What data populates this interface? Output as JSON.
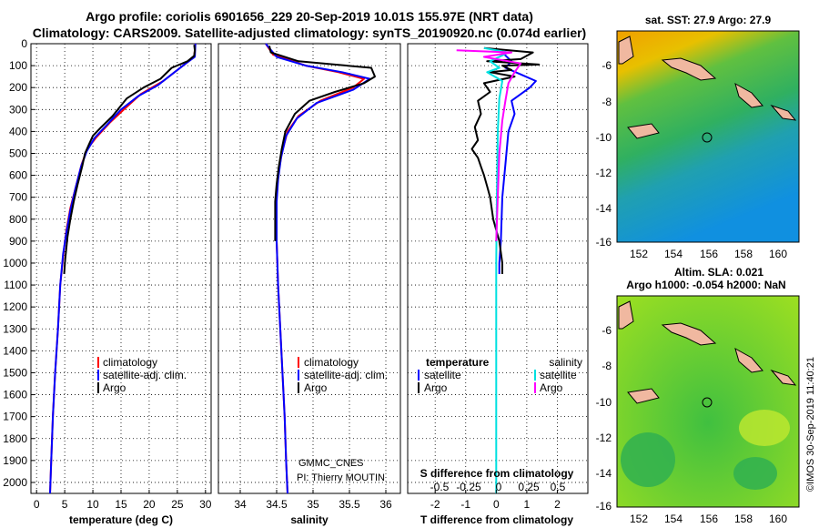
{
  "header": {
    "line1": "Argo profile: coriolis 6901656_229 20-Sep-2019 10.01S 155.97E (NRT data)",
    "line2": "Climatology: CARS2009. Satellite-adjusted climatology: synTS_20190920.nc (0.074d earlier)"
  },
  "colors": {
    "climatology": "#ff0000",
    "satellite": "#0000ff",
    "argo": "#000000",
    "salinity_satellite": "#00e0e0",
    "salinity_argo": "#ff00ff"
  },
  "chart_data": [
    {
      "id": "temperature",
      "type": "line",
      "xlabel": "temperature (deg C)",
      "xlim": [
        -1,
        31
      ],
      "xticks": [
        0,
        5,
        10,
        15,
        20,
        25,
        30
      ],
      "ylim": [
        2050,
        0
      ],
      "yticks": [
        0,
        100,
        200,
        300,
        400,
        500,
        600,
        700,
        800,
        900,
        1000,
        1100,
        1200,
        1300,
        1400,
        1500,
        1600,
        1700,
        1800,
        1900,
        2000
      ],
      "legend": [
        "climatology",
        "satellite-adj. clim.",
        "Argo"
      ],
      "series": [
        {
          "name": "climatology",
          "color": "#ff0000",
          "points": [
            [
              28.2,
              0
            ],
            [
              28.0,
              60
            ],
            [
              27.0,
              80
            ],
            [
              25.5,
              110
            ],
            [
              22.5,
              170
            ],
            [
              18.5,
              230
            ],
            [
              15.5,
              300
            ],
            [
              13.0,
              360
            ],
            [
              10.5,
              430
            ],
            [
              9.0,
              480
            ],
            [
              8.0,
              550
            ],
            [
              7.0,
              650
            ],
            [
              6.0,
              750
            ],
            [
              5.3,
              850
            ],
            [
              4.8,
              950
            ],
            [
              4.2,
              1100
            ],
            [
              3.8,
              1300
            ],
            [
              3.3,
              1500
            ],
            [
              2.9,
              1700
            ],
            [
              2.6,
              1900
            ],
            [
              2.4,
              2050
            ]
          ]
        },
        {
          "name": "satellite-adj. clim.",
          "color": "#0000ff",
          "points": [
            [
              28.2,
              0
            ],
            [
              28.1,
              60
            ],
            [
              26.5,
              90
            ],
            [
              24.5,
              130
            ],
            [
              21.5,
              190
            ],
            [
              18.0,
              240
            ],
            [
              15.0,
              300
            ],
            [
              12.5,
              370
            ],
            [
              10.3,
              430
            ],
            [
              8.9,
              490
            ],
            [
              7.9,
              560
            ],
            [
              6.9,
              660
            ],
            [
              6.0,
              760
            ],
            [
              5.3,
              860
            ],
            [
              4.7,
              960
            ],
            [
              4.2,
              1100
            ],
            [
              3.8,
              1300
            ],
            [
              3.3,
              1500
            ],
            [
              2.9,
              1700
            ],
            [
              2.6,
              1900
            ],
            [
              2.4,
              2050
            ]
          ]
        },
        {
          "name": "Argo",
          "color": "#000000",
          "points": [
            [
              28.0,
              5
            ],
            [
              28.1,
              30
            ],
            [
              28.0,
              55
            ],
            [
              26.8,
              80
            ],
            [
              24.0,
              110
            ],
            [
              22.0,
              160
            ],
            [
              19.0,
              200
            ],
            [
              16.0,
              250
            ],
            [
              13.5,
              330
            ],
            [
              11.5,
              380
            ],
            [
              10.0,
              420
            ],
            [
              9.3,
              460
            ],
            [
              8.6,
              500
            ],
            [
              8.1,
              560
            ],
            [
              7.3,
              640
            ],
            [
              6.6,
              720
            ],
            [
              6.0,
              800
            ],
            [
              5.5,
              880
            ],
            [
              5.1,
              980
            ],
            [
              4.9,
              1050
            ]
          ]
        }
      ]
    },
    {
      "id": "salinity",
      "type": "line",
      "xlabel": "salinity",
      "xlim": [
        33.7,
        36.2
      ],
      "xticks": [
        34,
        34.5,
        35,
        35.5,
        36
      ],
      "ylim": [
        2050,
        0
      ],
      "legend": [
        "climatology",
        "satellite-adj. clim.",
        "Argo"
      ],
      "credits": [
        "GMMC_CNES",
        "PI: Thierry MOUTIN"
      ],
      "series": [
        {
          "name": "climatology",
          "color": "#ff0000",
          "points": [
            [
              34.35,
              0
            ],
            [
              34.45,
              50
            ],
            [
              34.9,
              100
            ],
            [
              35.35,
              130
            ],
            [
              35.7,
              160
            ],
            [
              35.55,
              200
            ],
            [
              35.1,
              260
            ],
            [
              34.8,
              330
            ],
            [
              34.65,
              400
            ],
            [
              34.57,
              500
            ],
            [
              34.52,
              600
            ],
            [
              34.5,
              700
            ],
            [
              34.5,
              900
            ],
            [
              34.52,
              1100
            ],
            [
              34.55,
              1300
            ],
            [
              34.58,
              1500
            ],
            [
              34.61,
              1700
            ],
            [
              34.63,
              1900
            ],
            [
              34.65,
              2050
            ]
          ]
        },
        {
          "name": "satellite-adj. clim.",
          "color": "#0000ff",
          "points": [
            [
              34.35,
              0
            ],
            [
              34.5,
              60
            ],
            [
              34.9,
              100
            ],
            [
              35.4,
              130
            ],
            [
              35.78,
              160
            ],
            [
              35.55,
              210
            ],
            [
              35.05,
              270
            ],
            [
              34.78,
              340
            ],
            [
              34.63,
              420
            ],
            [
              34.56,
              520
            ],
            [
              34.52,
              620
            ],
            [
              34.5,
              720
            ],
            [
              34.5,
              900
            ],
            [
              34.52,
              1100
            ],
            [
              34.55,
              1300
            ],
            [
              34.58,
              1500
            ],
            [
              34.61,
              1700
            ],
            [
              34.63,
              1900
            ],
            [
              34.65,
              2050
            ]
          ]
        },
        {
          "name": "Argo",
          "color": "#000000",
          "points": [
            [
              34.4,
              10
            ],
            [
              34.42,
              40
            ],
            [
              34.8,
              80
            ],
            [
              35.3,
              95
            ],
            [
              35.8,
              110
            ],
            [
              35.85,
              150
            ],
            [
              35.7,
              180
            ],
            [
              35.3,
              220
            ],
            [
              34.95,
              260
            ],
            [
              34.75,
              320
            ],
            [
              34.62,
              400
            ],
            [
              34.57,
              480
            ],
            [
              34.53,
              560
            ],
            [
              34.5,
              640
            ],
            [
              34.48,
              720
            ],
            [
              34.48,
              820
            ],
            [
              34.48,
              900
            ]
          ]
        }
      ]
    },
    {
      "id": "difference",
      "type": "line",
      "xlabel": "T difference from climatology",
      "xlabel_top": "S difference from climatology",
      "xlim": [
        -2.9,
        3.0
      ],
      "xticks": [
        -2,
        -1,
        0,
        1,
        2
      ],
      "top_ticks": [
        "-0.5",
        "-0.25",
        "0",
        "0.25",
        "0.5"
      ],
      "ylim": [
        2050,
        0
      ],
      "legend_left_title": "temperature",
      "legend_right_title": "salinity",
      "legend_left": [
        "satellite",
        "Argo"
      ],
      "legend_right": [
        "satellite",
        "Argo"
      ],
      "series": [
        {
          "name": "T satellite",
          "color": "#0000ff",
          "points": [
            [
              0.2,
              40
            ],
            [
              0.5,
              80
            ],
            [
              0.3,
              110
            ],
            [
              0.8,
              140
            ],
            [
              1.3,
              170
            ],
            [
              1.1,
              200
            ],
            [
              0.5,
              260
            ],
            [
              0.6,
              320
            ],
            [
              0.4,
              400
            ],
            [
              0.3,
              550
            ],
            [
              0.2,
              700
            ],
            [
              0.15,
              900
            ],
            [
              0.1,
              1000
            ],
            [
              0.1,
              1050
            ]
          ]
        },
        {
          "name": "T Argo",
          "color": "#000000",
          "points": [
            [
              -0.4,
              20
            ],
            [
              1.2,
              40
            ],
            [
              0.8,
              70
            ],
            [
              -0.3,
              80
            ],
            [
              1.4,
              95
            ],
            [
              0.2,
              100
            ],
            [
              0.5,
              120
            ],
            [
              -0.2,
              130
            ],
            [
              0.6,
              150
            ],
            [
              -0.4,
              180
            ],
            [
              -0.2,
              220
            ],
            [
              -0.6,
              260
            ],
            [
              -0.5,
              320
            ],
            [
              -0.7,
              380
            ],
            [
              -0.6,
              440
            ],
            [
              -0.8,
              480
            ],
            [
              -0.6,
              520
            ],
            [
              -0.5,
              560
            ],
            [
              -0.4,
              600
            ],
            [
              -0.3,
              650
            ],
            [
              -0.2,
              700
            ],
            [
              -0.1,
              800
            ],
            [
              0.1,
              900
            ],
            [
              0.2,
              1000
            ],
            [
              0.2,
              1050
            ]
          ]
        },
        {
          "name": "S satellite",
          "color": "#00e0e0",
          "points": [
            [
              -0.4,
              20
            ],
            [
              0.4,
              40
            ],
            [
              -0.2,
              80
            ],
            [
              0.1,
              110
            ],
            [
              -0.3,
              130
            ],
            [
              0.2,
              170
            ],
            [
              0.1,
              250
            ],
            [
              0.05,
              400
            ],
            [
              0.02,
              700
            ],
            [
              0.0,
              1000
            ],
            [
              0.0,
              1500
            ],
            [
              0.0,
              2000
            ],
            [
              0.0,
              2050
            ]
          ]
        },
        {
          "name": "S Argo",
          "color": "#ff00ff",
          "points": [
            [
              -1.3,
              30
            ],
            [
              0.5,
              40
            ],
            [
              -0.4,
              60
            ],
            [
              0.8,
              90
            ],
            [
              0.6,
              130
            ],
            [
              0.4,
              180
            ],
            [
              0.3,
              260
            ],
            [
              0.2,
              350
            ],
            [
              0.1,
              500
            ],
            [
              0.05,
              700
            ],
            [
              0.0,
              900
            ]
          ]
        }
      ]
    }
  ],
  "maps": [
    {
      "id": "sst",
      "header": "sat. SST: 27.9 Argo: 27.9",
      "yticks": [
        "-6",
        "-8",
        "-10",
        "-12",
        "-14",
        "-16"
      ],
      "xticks": [
        "152",
        "154",
        "156",
        "158",
        "160"
      ]
    },
    {
      "id": "sla",
      "header1": "Altim. SLA: 0.021",
      "header2": "Argo h1000: -0.054 h2000: NaN",
      "yticks": [
        "-6",
        "-8",
        "-10",
        "-12",
        "-14",
        "-16"
      ],
      "xticks": [
        "152",
        "154",
        "156",
        "158",
        "160"
      ]
    }
  ],
  "footer": {
    "watermark": "©IMOS 30-Sep-2019 11:40:21"
  }
}
